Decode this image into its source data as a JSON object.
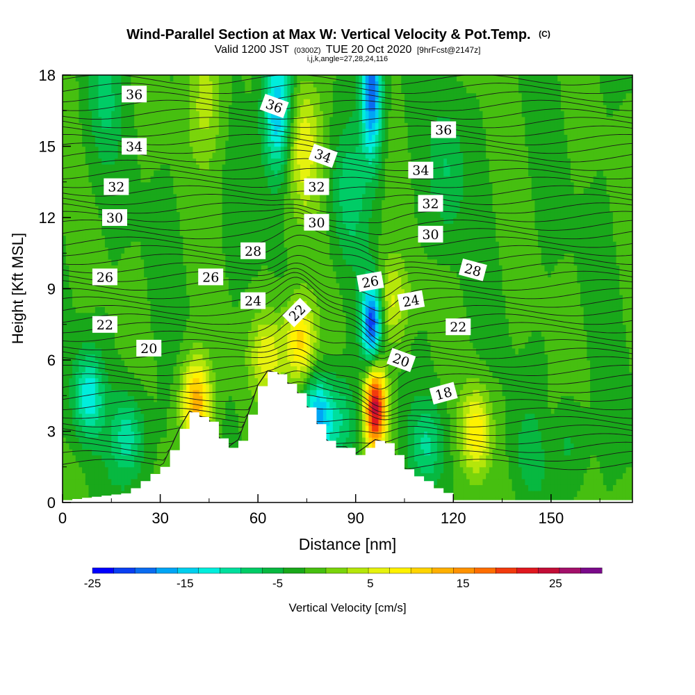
{
  "title": {
    "line1": "Wind-Parallel Section at Max W: Vertical Velocity & Pot.Temp.",
    "line1_mark": "(C)",
    "line2_a": "Valid 1200 JST",
    "line2_b": "(0300Z)",
    "line2_c": "TUE 20 Oct 2020",
    "line2_d": "[9hrFcst@2147z]",
    "line3": "i,j,k,angle=27,28,24,116"
  },
  "chart_data": {
    "type": "heatmap",
    "xlabel": "Distance [nm]",
    "ylabel": "Height [Kft MSL]",
    "xlim": [
      0,
      175
    ],
    "ylim": [
      0,
      18
    ],
    "x_ticks": [
      0,
      30,
      60,
      90,
      120,
      150
    ],
    "y_ticks": [
      0,
      3,
      6,
      9,
      12,
      15,
      18
    ],
    "colorbar": {
      "label": "Vertical Velocity [cm/s]",
      "min": -25,
      "max": 30,
      "step": 2.5,
      "tick_values": [
        -25,
        -15,
        -5,
        5,
        15,
        25
      ],
      "tick_labels": [
        "-25",
        "-15",
        "-5",
        "5",
        "15",
        "25"
      ],
      "colors": [
        "#0000ff",
        "#0a3ff2",
        "#0a6cf0",
        "#00a5f5",
        "#00cfee",
        "#00eedc",
        "#00df9d",
        "#00cc66",
        "#07b840",
        "#19a81a",
        "#46bf10",
        "#7ad40b",
        "#b5e60a",
        "#e6f20e",
        "#fff200",
        "#ffd400",
        "#ffb000",
        "#ff9200",
        "#ff6e00",
        "#f23a0d",
        "#e0181f",
        "#c20d36",
        "#a3106a",
        "#7a0a8a"
      ]
    },
    "terrain_profile": {
      "x": [
        0,
        19,
        22,
        25,
        28,
        31,
        33,
        36,
        39,
        45,
        48,
        51,
        54,
        57,
        60,
        63,
        66,
        72,
        75,
        78,
        81,
        84,
        87,
        90,
        93,
        96,
        99,
        102,
        105,
        108,
        111,
        114,
        117,
        120,
        175
      ],
      "height": [
        0.1,
        0.4,
        0.7,
        1.0,
        1.3,
        1.6,
        2.2,
        3.1,
        3.8,
        3.4,
        2.7,
        2.3,
        2.6,
        3.7,
        4.9,
        5.5,
        5.4,
        4.6,
        4.0,
        3.3,
        2.6,
        2.3,
        2.3,
        2.0,
        2.3,
        2.6,
        2.5,
        2.0,
        1.4,
        1.1,
        0.9,
        0.6,
        0.4,
        0.1,
        0.1
      ]
    },
    "features": [
      {
        "name": "updraft",
        "x": 96,
        "z": 4.0,
        "w": 29
      },
      {
        "name": "updraft",
        "x": 41,
        "z": 4.2,
        "w": 17
      },
      {
        "name": "updraft",
        "x": 73,
        "z": 6.8,
        "w": 14
      },
      {
        "name": "updraft",
        "x": 127,
        "z": 3.0,
        "w": 12
      },
      {
        "name": "updraft",
        "x": 74,
        "z": 15.0,
        "w": 10
      },
      {
        "name": "updraft",
        "x": 63,
        "z": 6.2,
        "w": 9
      },
      {
        "name": "updraft",
        "x": 101,
        "z": 8.5,
        "w": 8
      },
      {
        "name": "updraft",
        "x": 44,
        "z": 17.0,
        "w": 6
      },
      {
        "name": "updraft",
        "x": 150,
        "z": 2.5,
        "w": 6
      },
      {
        "name": "downdraft",
        "x": 95,
        "z": 7.6,
        "w": -23
      },
      {
        "name": "downdraft",
        "x": 95,
        "z": 17.3,
        "w": -20
      },
      {
        "name": "downdraft",
        "x": 66,
        "z": 16.5,
        "w": -16
      },
      {
        "name": "downdraft",
        "x": 78,
        "z": 3.5,
        "w": -15
      },
      {
        "name": "downdraft",
        "x": 8,
        "z": 4.5,
        "w": -12
      },
      {
        "name": "downdraft",
        "x": 20,
        "z": 2.8,
        "w": -9
      },
      {
        "name": "downdraft",
        "x": 85,
        "z": 3.5,
        "w": -7
      },
      {
        "name": "downdraft",
        "x": 112,
        "z": 2.5,
        "w": -7
      },
      {
        "name": "downdraft",
        "x": 145,
        "z": 2.2,
        "w": -6
      },
      {
        "name": "downdraft",
        "x": 154,
        "z": 2.5,
        "w": -6
      },
      {
        "name": "downdraft",
        "x": 118,
        "z": 14.0,
        "w": -5
      },
      {
        "name": "downdraft",
        "x": 88,
        "z": 13.0,
        "w": -6
      },
      {
        "name": "downdraft",
        "x": 13,
        "z": 17.0,
        "w": -5
      }
    ],
    "theta_contour_labels": [
      {
        "text": "36",
        "x": 22.0,
        "z": 17.2,
        "rot": 0
      },
      {
        "text": "34",
        "x": 22.0,
        "z": 15.0,
        "rot": 0
      },
      {
        "text": "32",
        "x": 16.5,
        "z": 13.3,
        "rot": 0
      },
      {
        "text": "30",
        "x": 16.0,
        "z": 12.0,
        "rot": 0
      },
      {
        "text": "26",
        "x": 13.0,
        "z": 9.5,
        "rot": 0
      },
      {
        "text": "22",
        "x": 13.0,
        "z": 7.5,
        "rot": 0
      },
      {
        "text": "20",
        "x": 26.5,
        "z": 6.5,
        "rot": 0
      },
      {
        "text": "26",
        "x": 45.5,
        "z": 9.5,
        "rot": 0
      },
      {
        "text": "28",
        "x": 58.5,
        "z": 10.6,
        "rot": 0
      },
      {
        "text": "24",
        "x": 58.5,
        "z": 8.5,
        "rot": 0
      },
      {
        "text": "22",
        "x": 72.0,
        "z": 8.0,
        "rot": -45
      },
      {
        "text": "36",
        "x": 65.0,
        "z": 16.7,
        "rot": 20
      },
      {
        "text": "34",
        "x": 80.0,
        "z": 14.6,
        "rot": 20
      },
      {
        "text": "32",
        "x": 78.0,
        "z": 13.3,
        "rot": 0
      },
      {
        "text": "30",
        "x": 78.0,
        "z": 11.8,
        "rot": 0
      },
      {
        "text": "26",
        "x": 94.5,
        "z": 9.3,
        "rot": -10
      },
      {
        "text": "24",
        "x": 107.0,
        "z": 8.5,
        "rot": -10
      },
      {
        "text": "20",
        "x": 104.0,
        "z": 6.0,
        "rot": 20
      },
      {
        "text": "18",
        "x": 117.0,
        "z": 4.6,
        "rot": -15
      },
      {
        "text": "36",
        "x": 117.0,
        "z": 15.7,
        "rot": 0
      },
      {
        "text": "34",
        "x": 110.0,
        "z": 14.0,
        "rot": 0
      },
      {
        "text": "32",
        "x": 113.0,
        "z": 12.6,
        "rot": 0
      },
      {
        "text": "30",
        "x": 113.0,
        "z": 11.3,
        "rot": 0
      },
      {
        "text": "28",
        "x": 126.0,
        "z": 9.8,
        "rot": 15
      },
      {
        "text": "22",
        "x": 121.5,
        "z": 7.4,
        "rot": 0
      }
    ]
  }
}
